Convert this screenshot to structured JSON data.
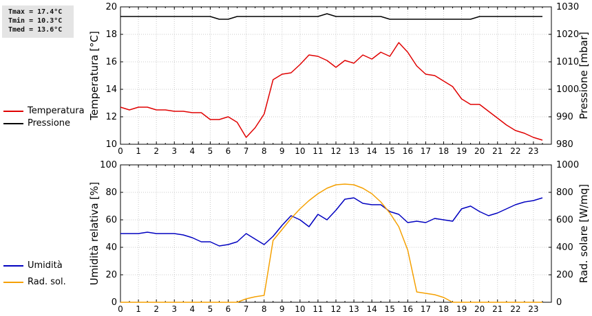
{
  "stats": {
    "tmax": "Tmax = 17.4°C",
    "tmin": "Tmin = 10.3°C",
    "tmed": "Tmed = 13.6°C"
  },
  "colors": {
    "temperature": "#e00000",
    "pressure": "#000000",
    "humidity": "#0000c0",
    "radiation": "#f5a000",
    "grid": "#c8c8c8"
  },
  "chart_data": [
    {
      "type": "line",
      "xlim": [
        0,
        24
      ],
      "x_ticks": [
        "0",
        "1",
        "2",
        "3",
        "4",
        "5",
        "6",
        "7",
        "8",
        "9",
        "10",
        "11",
        "12",
        "13",
        "14",
        "15",
        "16",
        "17",
        "18",
        "19",
        "20",
        "21",
        "22",
        "23"
      ],
      "ylabel": "Temperatura [°C]",
      "ylim": [
        10,
        20
      ],
      "y_ticks": [
        "10",
        "12",
        "14",
        "16",
        "18",
        "20"
      ],
      "y2label": "Pressione [mbar]",
      "y2lim": [
        980,
        1030
      ],
      "y2_ticks": [
        "980",
        "990",
        "1000",
        "1010",
        "1020",
        "1030"
      ],
      "grid": true,
      "legend_position": "left",
      "series": [
        {
          "name": "Temperatura",
          "axis": "left",
          "x": [
            0,
            0.5,
            1,
            1.5,
            2,
            2.5,
            3,
            3.5,
            4,
            4.5,
            5,
            5.5,
            6,
            6.5,
            7,
            7.5,
            8,
            8.5,
            9,
            9.5,
            10,
            10.5,
            11,
            11.5,
            12,
            12.5,
            13,
            13.5,
            14,
            14.5,
            15,
            15.5,
            16,
            16.5,
            17,
            17.5,
            18,
            18.5,
            19,
            19.5,
            20,
            20.5,
            21,
            21.5,
            22,
            22.5,
            23,
            23.5
          ],
          "values": [
            12.7,
            12.5,
            12.7,
            12.7,
            12.5,
            12.5,
            12.4,
            12.4,
            12.3,
            12.3,
            11.8,
            11.8,
            12.0,
            11.6,
            10.5,
            11.2,
            12.2,
            14.7,
            15.1,
            15.2,
            15.8,
            16.5,
            16.4,
            16.1,
            15.6,
            16.1,
            15.9,
            16.5,
            16.2,
            16.7,
            16.4,
            17.4,
            16.7,
            15.7,
            15.1,
            15.0,
            14.6,
            14.2,
            13.3,
            12.9,
            12.9,
            12.4,
            11.9,
            11.4,
            11.0,
            10.8,
            10.5,
            10.3
          ]
        },
        {
          "name": "Pressione",
          "axis": "right",
          "x": [
            0,
            5,
            5.5,
            6,
            6.5,
            11,
            11.5,
            12,
            14.5,
            15,
            19.5,
            20,
            23.5
          ],
          "values": [
            1026.5,
            1026.5,
            1025.5,
            1025.5,
            1026.5,
            1026.5,
            1027.5,
            1026.5,
            1026.5,
            1025.5,
            1025.5,
            1026.5,
            1026.5
          ]
        }
      ]
    },
    {
      "type": "line",
      "xlim": [
        0,
        24
      ],
      "x_ticks": [
        "0",
        "1",
        "2",
        "3",
        "4",
        "5",
        "6",
        "7",
        "8",
        "9",
        "10",
        "11",
        "12",
        "13",
        "14",
        "15",
        "16",
        "17",
        "18",
        "19",
        "20",
        "21",
        "22",
        "23"
      ],
      "ylabel": "Umidità relativa [%]",
      "ylim": [
        0,
        100
      ],
      "y_ticks": [
        "0",
        "20",
        "40",
        "60",
        "80",
        "100"
      ],
      "y2label": "Rad. solare [W/mq]",
      "y2lim": [
        0,
        1000
      ],
      "y2_ticks": [
        "0",
        "200",
        "400",
        "600",
        "800",
        "1000"
      ],
      "grid": true,
      "legend_position": "left",
      "series": [
        {
          "name": "Umidità",
          "axis": "left",
          "x": [
            0,
            0.5,
            1,
            1.5,
            2,
            2.5,
            3,
            3.5,
            4,
            4.5,
            5,
            5.5,
            6,
            6.5,
            7,
            7.5,
            8,
            8.5,
            9,
            9.5,
            10,
            10.5,
            11,
            11.5,
            12,
            12.5,
            13,
            13.5,
            14,
            14.5,
            15,
            15.5,
            16,
            16.5,
            17,
            17.5,
            18,
            18.5,
            19,
            19.5,
            20,
            20.5,
            21,
            21.5,
            22,
            22.5,
            23,
            23.5
          ],
          "values": [
            50,
            50,
            50,
            51,
            50,
            50,
            50,
            49,
            47,
            44,
            44,
            41,
            42,
            44,
            50,
            46,
            42,
            48,
            56,
            63,
            60,
            55,
            64,
            60,
            67,
            75,
            76,
            72,
            71,
            71,
            66,
            64,
            58,
            59,
            58,
            61,
            60,
            59,
            68,
            70,
            66,
            63,
            65,
            68,
            71,
            73,
            74,
            76
          ]
        },
        {
          "name": "Rad. sol.",
          "axis": "right",
          "x": [
            0,
            6.5,
            7,
            7.5,
            8,
            8.5,
            9,
            9.5,
            10,
            10.5,
            11,
            11.5,
            12,
            12.5,
            13,
            13.5,
            14,
            14.5,
            15,
            15.5,
            16,
            16.5,
            17,
            17.5,
            18,
            18.5,
            19,
            19.5,
            20,
            21,
            22,
            23,
            23.5
          ],
          "values": [
            0,
            0,
            25,
            40,
            50,
            450,
            530,
            610,
            680,
            740,
            790,
            830,
            855,
            860,
            855,
            830,
            790,
            730,
            650,
            550,
            380,
            75,
            65,
            55,
            35,
            0,
            0,
            0,
            0,
            0,
            0,
            0,
            0
          ]
        }
      ]
    }
  ]
}
